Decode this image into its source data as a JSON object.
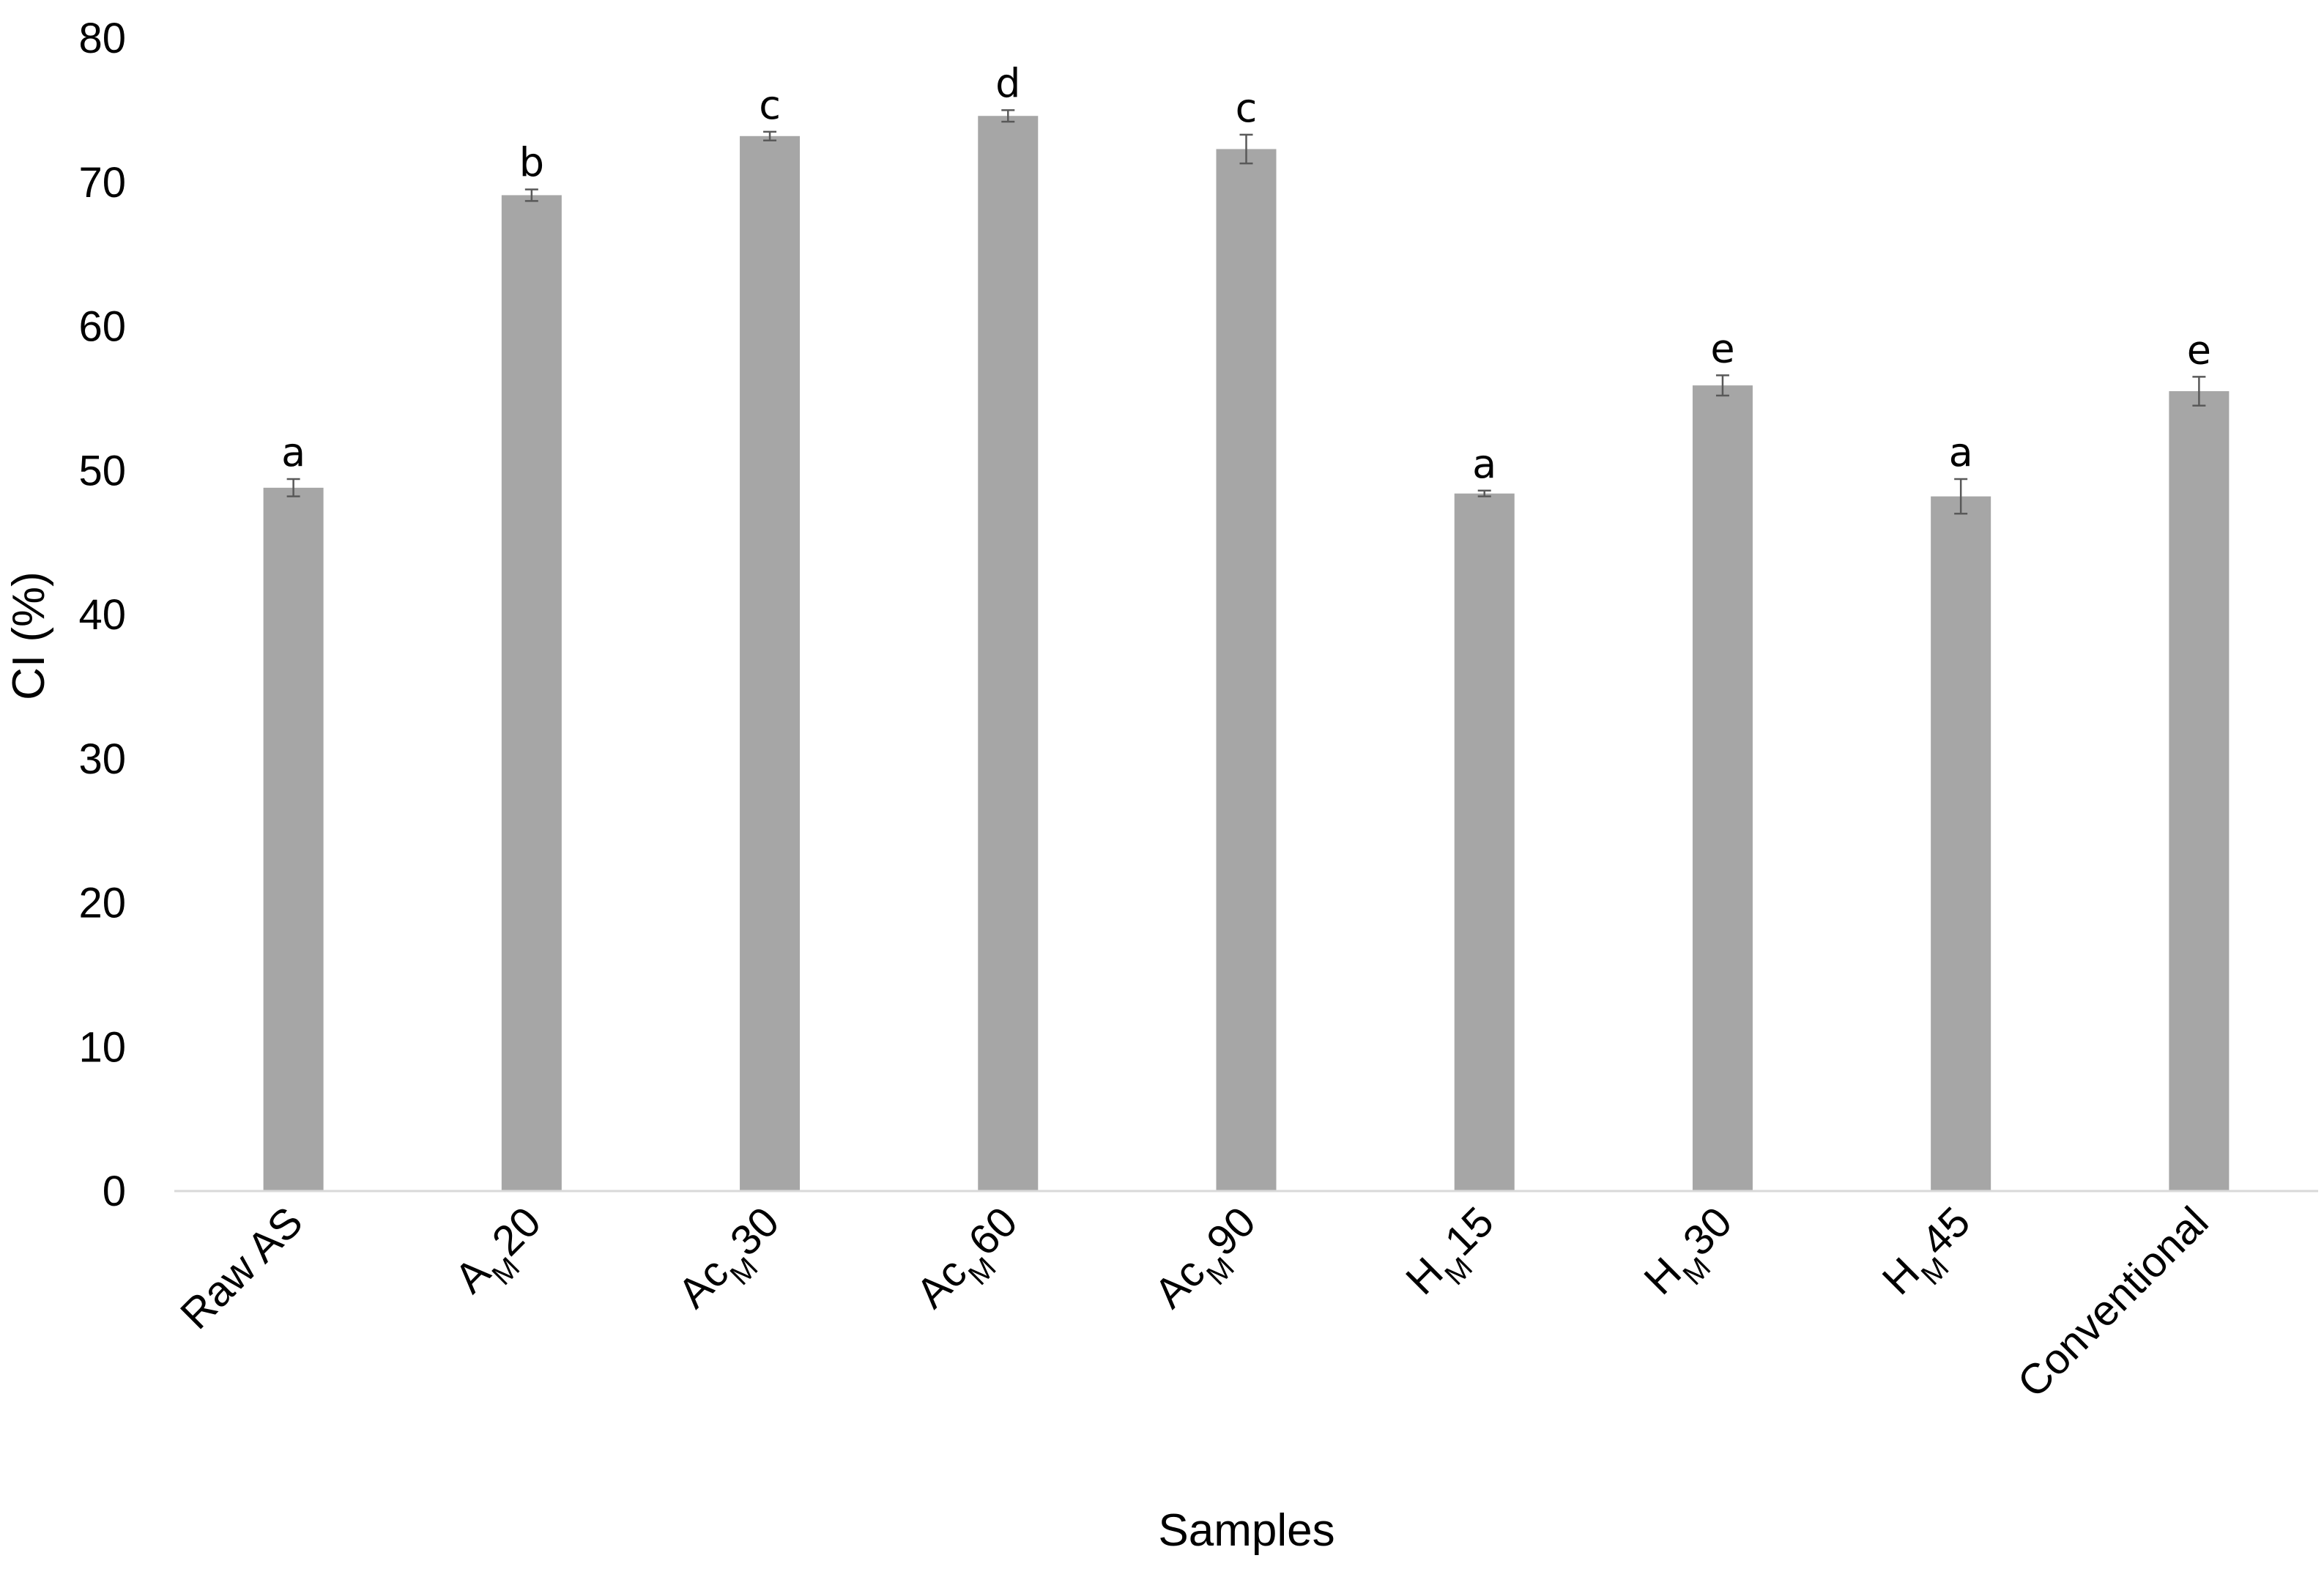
{
  "chart_data": {
    "type": "bar",
    "title": "",
    "xlabel": "Samples",
    "ylabel": "CI (%)",
    "ylim": [
      0,
      80
    ],
    "yticks": [
      0,
      10,
      20,
      30,
      40,
      50,
      60,
      70,
      80
    ],
    "grid": false,
    "legend": "none",
    "bar_color": "#a6a6a6",
    "errorbar_color": "#595959",
    "categories": [
      {
        "label": "Raw AS",
        "main": "Raw AS",
        "sub": "",
        "tail": ""
      },
      {
        "label": "AM20",
        "main": "A",
        "sub": "M",
        "tail": "20"
      },
      {
        "label": "AcM30",
        "main": "Ac",
        "sub": "M",
        "tail": "30"
      },
      {
        "label": "AcM60",
        "main": "Ac",
        "sub": "M",
        "tail": "60"
      },
      {
        "label": "AcM90",
        "main": "Ac",
        "sub": "M",
        "tail": "90"
      },
      {
        "label": "HM15",
        "main": "H",
        "sub": "M",
        "tail": "15"
      },
      {
        "label": "HM30",
        "main": "H",
        "sub": "M",
        "tail": "30"
      },
      {
        "label": "HM45",
        "main": "H",
        "sub": "M",
        "tail": "45"
      },
      {
        "label": "Conventional",
        "main": "Conventional",
        "sub": "",
        "tail": ""
      }
    ],
    "values": [
      48.8,
      69.1,
      73.2,
      74.6,
      72.3,
      48.4,
      55.9,
      48.2,
      55.5
    ],
    "errors": [
      0.6,
      0.4,
      0.3,
      0.4,
      1.0,
      0.2,
      0.7,
      1.2,
      1.0
    ],
    "significance_letters": [
      "a",
      "b",
      "c",
      "d",
      "c",
      "a",
      "e",
      "a",
      "e"
    ]
  }
}
